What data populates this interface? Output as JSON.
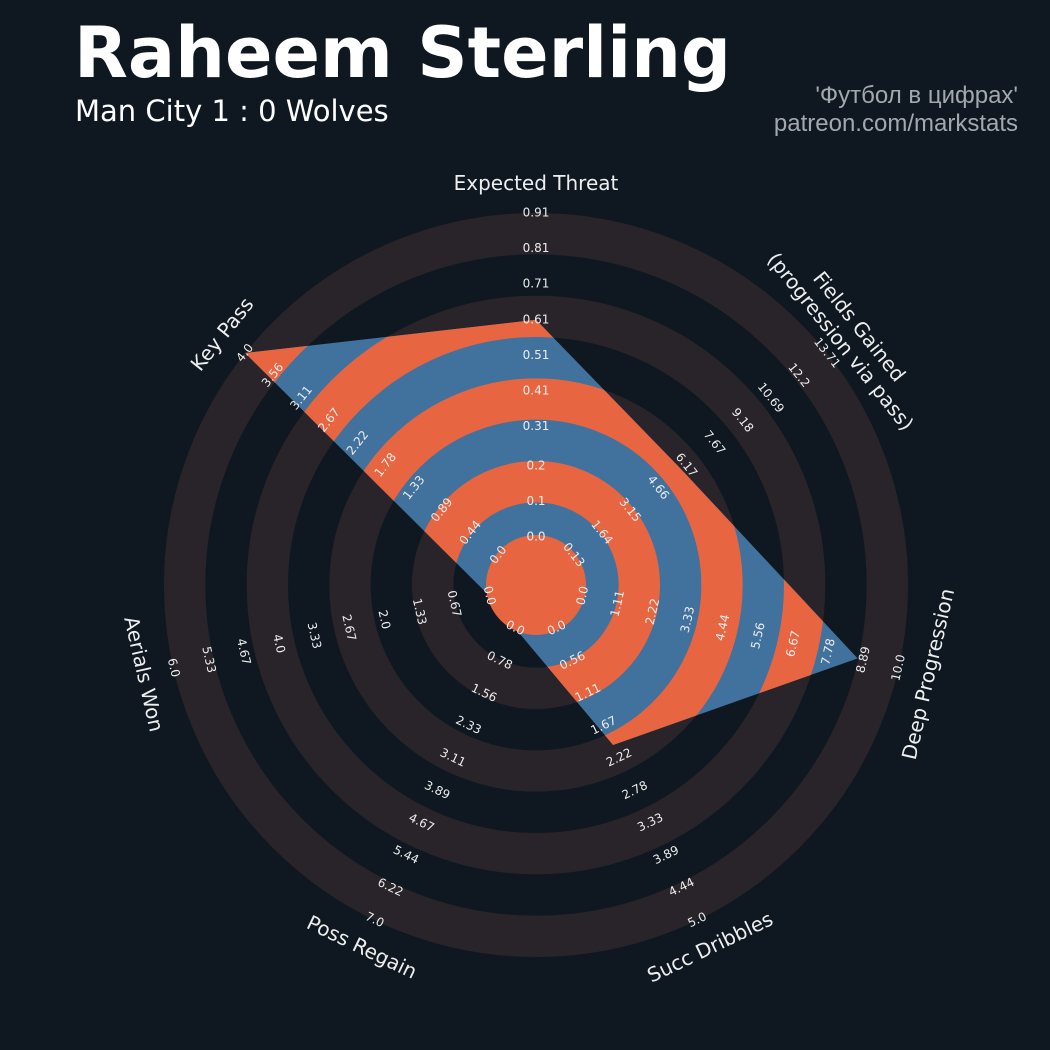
{
  "chart_data": {
    "type": "radar",
    "title": "Raheem Sterling",
    "subtitle": "Man City 1 : 0 Wolves",
    "credits": [
      "'Футбол в цифрах'",
      "patreon.com/markstats"
    ],
    "categories": [
      "Expected Threat",
      "Fields Gained\n(progression via pass)",
      "Deep Progression",
      "Succ Dribbles",
      "Poss Regain",
      "Aerials Won",
      "Key Pass"
    ],
    "values": [
      0.61,
      5.9,
      8.7,
      2,
      0,
      0,
      4
    ],
    "color": "#41729d",
    "ring_color": "#e76641",
    "background_ring_color": "#28242a",
    "ranges": [
      {
        "lim": [
          0,
          0.91
        ],
        "ticks": [
          {
            "value": 0,
            "label": "0.0"
          },
          0.1,
          0.2,
          0.31,
          0.41,
          0.51,
          0.61,
          0.71,
          0.81,
          0.91
        ]
      },
      {
        "lim": [
          0.13,
          13.71
        ],
        "ticks": [
          0.13,
          1.64,
          3.15,
          4.66,
          6.17,
          7.67,
          9.18,
          10.69,
          12.2,
          13.71
        ]
      },
      {
        "lim": [
          0,
          10
        ],
        "ticks": [
          {
            "value": 0,
            "label": "0.0"
          },
          1.11,
          2.22,
          3.33,
          4.44,
          5.56,
          6.67,
          7.78,
          8.89,
          {
            "value": 10,
            "label": "10.0"
          }
        ]
      },
      {
        "lim": [
          0,
          5
        ],
        "ticks": [
          {
            "value": 0,
            "label": "0.0"
          },
          0.56,
          1.11,
          1.67,
          2.22,
          2.78,
          3.33,
          3.89,
          4.44,
          {
            "value": 5,
            "label": "5.0"
          }
        ]
      },
      {
        "lim": [
          0,
          7
        ],
        "ticks": [
          {
            "value": 0,
            "label": "0.0"
          },
          0.78,
          1.56,
          2.33,
          3.11,
          3.89,
          4.67,
          5.44,
          6.22,
          {
            "value": 7,
            "label": "7.0"
          }
        ]
      },
      {
        "lim": [
          0,
          6
        ],
        "ticks": [
          {
            "value": 0,
            "label": "0.0"
          },
          0.67,
          1.33,
          {
            "value": 2,
            "label": "2.0"
          },
          2.67,
          3.33,
          {
            "value": 4,
            "label": "4.0"
          },
          4.67,
          5.33,
          {
            "value": 6,
            "label": "6.0"
          }
        ]
      },
      {
        "lim": [
          0,
          4
        ],
        "ticks": [
          {
            "value": 0,
            "label": "0.0"
          },
          0.44,
          0.89,
          1.33,
          1.78,
          2.22,
          2.67,
          3.11,
          3.56,
          {
            "value": 4,
            "label": "4.0"
          }
        ]
      }
    ]
  }
}
